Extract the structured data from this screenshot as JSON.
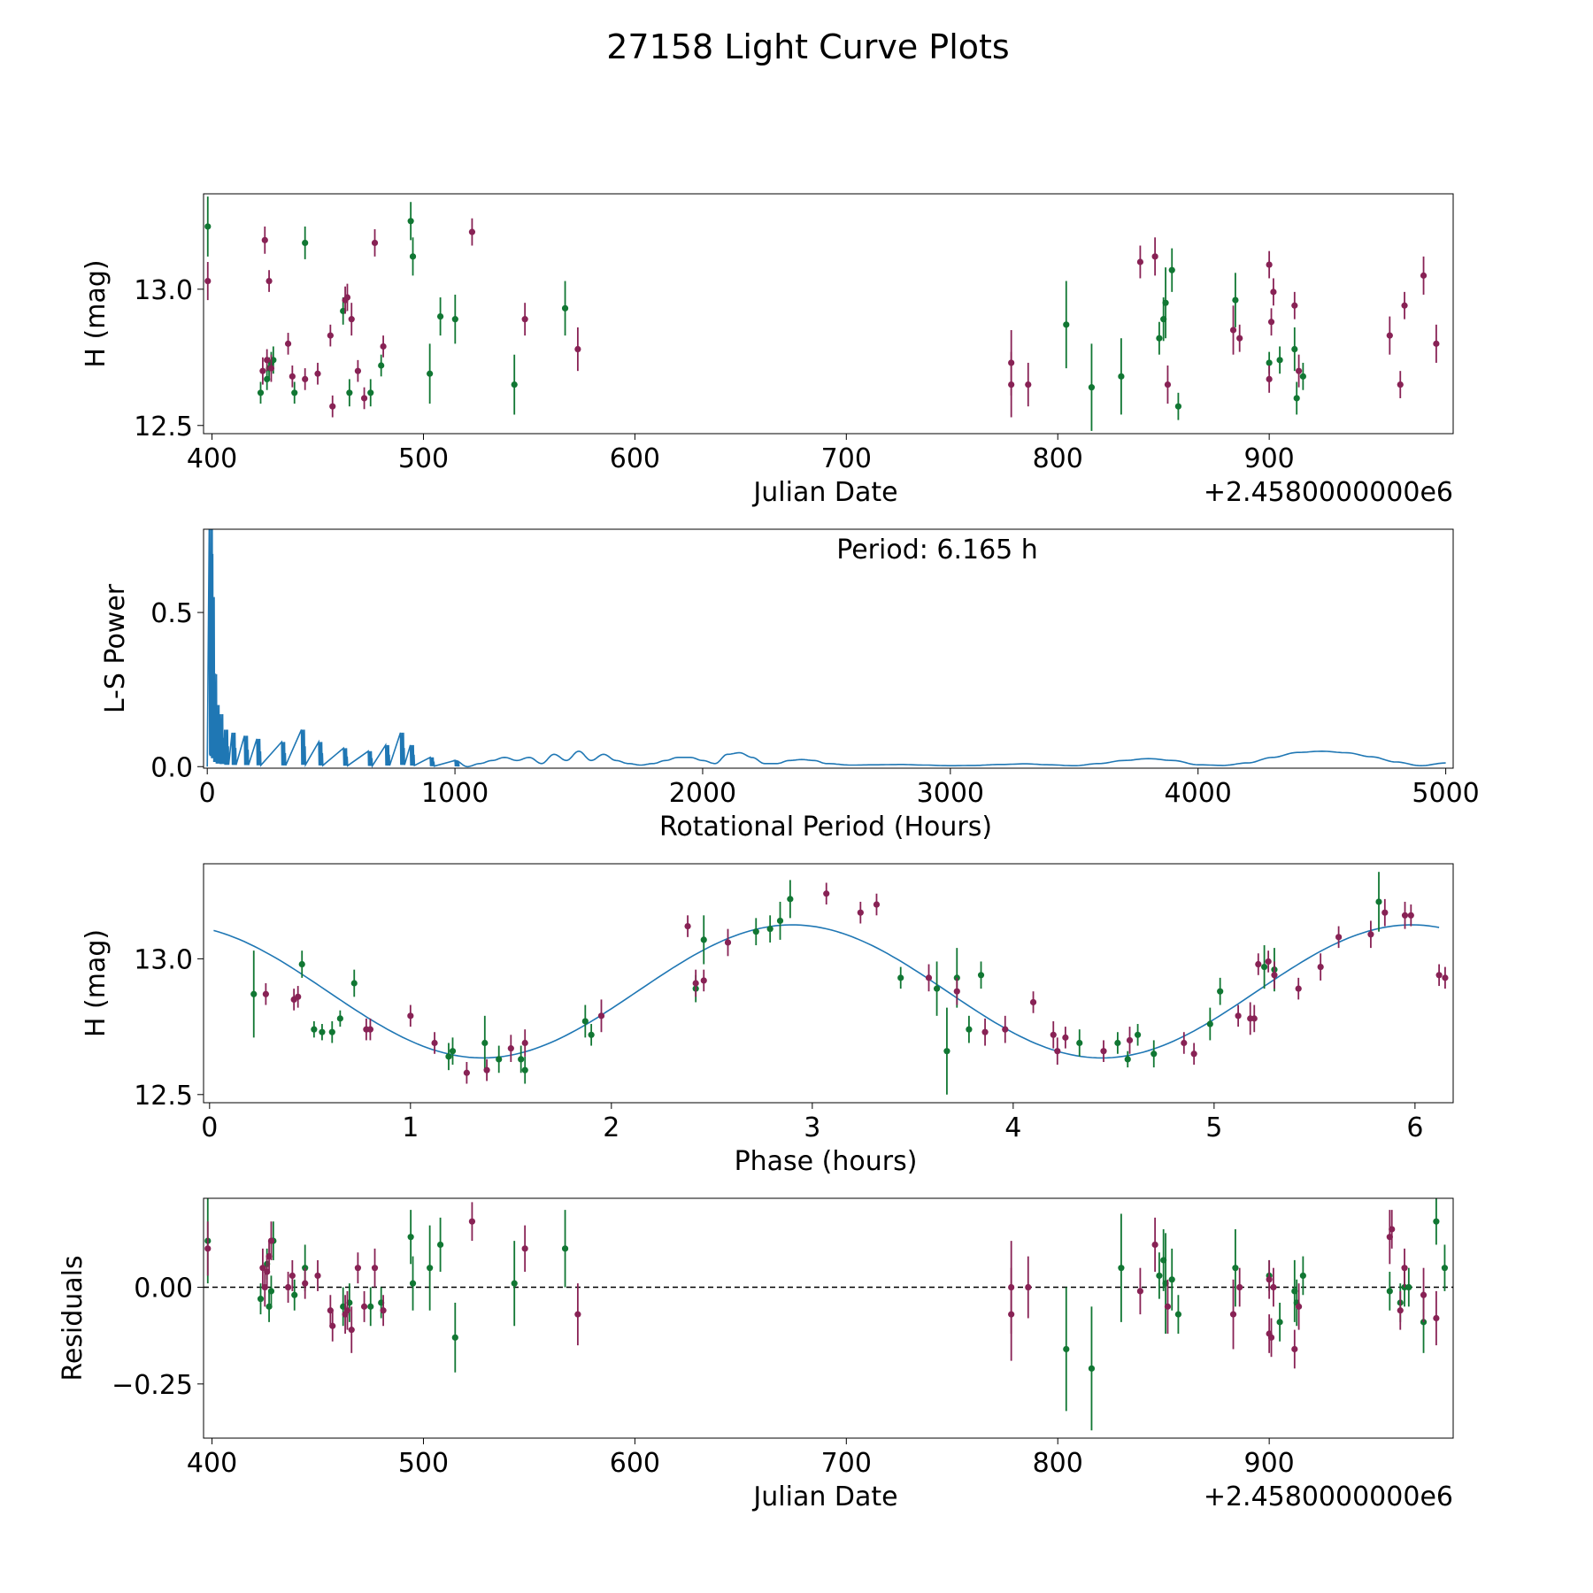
{
  "figure": {
    "title": "27158 Light Curve Plots"
  },
  "colors": {
    "band_g": "#117733",
    "band_r": "#882255",
    "model": "#1f77b4",
    "axes": "#000000"
  },
  "chart_data": [
    {
      "id": "lightcurve",
      "type": "scatter",
      "xlabel": "Julian Date",
      "ylabel": "H (mag)",
      "offset_label": "+2.4580000000e6",
      "xlim": [
        396,
        987
      ],
      "ylim": [
        12.47,
        13.35
      ],
      "xticks": [
        400,
        500,
        600,
        700,
        800,
        900
      ],
      "yticks": [
        12.5,
        13.0
      ],
      "ytick_labels": [
        "12.5",
        "13.0"
      ],
      "series": [
        {
          "name": "g",
          "color": "#117733",
          "x": [
            398,
            423,
            426,
            427,
            428,
            429,
            439,
            444,
            462,
            465,
            475,
            480,
            494,
            495,
            503,
            508,
            515,
            543,
            567,
            804,
            816,
            830,
            848,
            850,
            851,
            854,
            857,
            884,
            900,
            905,
            912,
            913,
            916
          ],
          "y": [
            13.23,
            12.62,
            12.67,
            12.71,
            12.73,
            12.74,
            12.62,
            13.17,
            12.92,
            12.62,
            12.62,
            12.72,
            13.25,
            13.12,
            12.69,
            12.9,
            12.89,
            12.65,
            12.93,
            12.87,
            12.64,
            12.68,
            12.82,
            12.89,
            12.95,
            13.07,
            12.57,
            12.96,
            12.73,
            12.74,
            12.78,
            12.6,
            12.68
          ],
          "err": [
            0.11,
            0.04,
            0.04,
            0.04,
            0.04,
            0.05,
            0.04,
            0.06,
            0.05,
            0.05,
            0.05,
            0.04,
            0.07,
            0.07,
            0.11,
            0.07,
            0.09,
            0.11,
            0.1,
            0.16,
            0.16,
            0.14,
            0.06,
            0.08,
            0.13,
            0.08,
            0.05,
            0.1,
            0.04,
            0.05,
            0.08,
            0.06,
            0.05
          ]
        },
        {
          "name": "r",
          "color": "#882255",
          "x": [
            398,
            424,
            425,
            426,
            427,
            428,
            436,
            438,
            444,
            450,
            456,
            457,
            463,
            464,
            466,
            469,
            472,
            477,
            481,
            523,
            548,
            573,
            778,
            778,
            786,
            839,
            846,
            852,
            883,
            886,
            900,
            900,
            901,
            902,
            912,
            914,
            957,
            962,
            964,
            973,
            979
          ],
          "y": [
            13.03,
            12.7,
            13.18,
            12.74,
            13.03,
            12.71,
            12.8,
            12.68,
            12.67,
            12.69,
            12.83,
            12.57,
            12.96,
            12.97,
            12.89,
            12.7,
            12.6,
            13.17,
            12.79,
            13.21,
            12.89,
            12.78,
            12.73,
            12.65,
            12.65,
            13.1,
            13.12,
            12.65,
            12.85,
            12.82,
            13.09,
            12.67,
            12.88,
            12.99,
            12.94,
            12.7,
            12.83,
            12.65,
            12.94,
            13.05,
            12.8
          ],
          "err": [
            0.07,
            0.05,
            0.05,
            0.04,
            0.04,
            0.05,
            0.04,
            0.04,
            0.04,
            0.04,
            0.04,
            0.04,
            0.05,
            0.05,
            0.06,
            0.04,
            0.04,
            0.05,
            0.04,
            0.05,
            0.06,
            0.08,
            0.12,
            0.12,
            0.08,
            0.06,
            0.07,
            0.07,
            0.09,
            0.05,
            0.05,
            0.05,
            0.05,
            0.05,
            0.05,
            0.06,
            0.07,
            0.05,
            0.05,
            0.07,
            0.07
          ]
        }
      ]
    },
    {
      "id": "periodogram",
      "type": "line",
      "xlabel": "Rotational Period (Hours)",
      "ylabel": "L-S Power",
      "annotation": "Period: 6.165 h",
      "xlim": [
        -15,
        5030
      ],
      "ylim": [
        -0.005,
        0.77
      ],
      "xticks": [
        0,
        1000,
        2000,
        3000,
        4000,
        5000
      ],
      "yticks": [
        0.0,
        0.5
      ],
      "ytick_labels": [
        "0.0",
        "0.5"
      ],
      "series": [
        {
          "name": "power",
          "color": "#1f77b4",
          "peaks": [
            [
              8,
              0.77
            ],
            [
              10,
              0.69
            ],
            [
              16,
              0.55
            ],
            [
              25,
              0.3
            ],
            [
              35,
              0.2
            ],
            [
              50,
              0.17
            ],
            [
              70,
              0.12
            ],
            [
              100,
              0.11
            ],
            [
              150,
              0.1
            ],
            [
              200,
              0.09
            ],
            [
              300,
              0.08
            ],
            [
              380,
              0.12
            ],
            [
              450,
              0.08
            ],
            [
              550,
              0.06
            ],
            [
              650,
              0.05
            ],
            [
              720,
              0.07
            ],
            [
              780,
              0.11
            ],
            [
              820,
              0.07
            ],
            [
              900,
              0.03
            ],
            [
              1000,
              0.02
            ]
          ],
          "x": [
            1000,
            1050,
            1100,
            1150,
            1200,
            1250,
            1300,
            1350,
            1400,
            1450,
            1500,
            1550,
            1600,
            1650,
            1700,
            1750,
            1800,
            1850,
            1900,
            1950,
            2000,
            2050,
            2100,
            2150,
            2200,
            2250,
            2300,
            2350,
            2400,
            2450,
            2500,
            2600,
            2700,
            2800,
            2900,
            3000,
            3100,
            3200,
            3300,
            3400,
            3500,
            3600,
            3700,
            3800,
            3900,
            4000,
            4100,
            4200,
            4300,
            4400,
            4500,
            4600,
            4700,
            4800,
            4900,
            5000
          ],
          "y": [
            0.02,
            0.0,
            0.01,
            0.02,
            0.03,
            0.02,
            0.03,
            0.01,
            0.04,
            0.02,
            0.05,
            0.02,
            0.04,
            0.02,
            0.01,
            0.005,
            0.01,
            0.02,
            0.03,
            0.03,
            0.02,
            0.01,
            0.04,
            0.045,
            0.03,
            0.01,
            0.01,
            0.02,
            0.023,
            0.02,
            0.01,
            0.005,
            0.006,
            0.007,
            0.005,
            0.003,
            0.004,
            0.007,
            0.009,
            0.006,
            0.003,
            0.01,
            0.02,
            0.026,
            0.02,
            0.006,
            0.004,
            0.012,
            0.03,
            0.046,
            0.05,
            0.045,
            0.032,
            0.015,
            0.003,
            0.012
          ]
        }
      ]
    },
    {
      "id": "phased",
      "type": "scatter",
      "xlabel": "Phase (hours)",
      "ylabel": "H (mag)",
      "xlim": [
        -0.03,
        6.19
      ],
      "ylim": [
        12.47,
        13.35
      ],
      "xticks": [
        0,
        1,
        2,
        3,
        4,
        5,
        6
      ],
      "yticks": [
        12.5,
        13.0
      ],
      "ytick_labels": [
        "12.5",
        "13.0"
      ],
      "model": {
        "mean": 12.88,
        "amp": 0.245,
        "period": 3.083,
        "phase_of_max": 2.9
      },
      "series": [
        {
          "name": "g",
          "color": "#117733",
          "x": [
            0.22,
            0.46,
            0.52,
            0.56,
            0.61,
            0.65,
            0.72,
            1.19,
            1.21,
            1.37,
            1.44,
            1.55,
            1.57,
            1.87,
            1.9,
            2.42,
            2.46,
            2.72,
            2.79,
            2.84,
            2.89,
            3.44,
            3.62,
            3.67,
            3.72,
            3.78,
            3.84,
            4.33,
            4.52,
            4.57,
            4.62,
            4.7,
            4.98,
            5.03,
            5.25,
            5.3,
            5.82
          ],
          "y": [
            12.87,
            12.98,
            12.74,
            12.73,
            12.73,
            12.78,
            12.91,
            12.64,
            12.66,
            12.69,
            12.63,
            12.63,
            12.59,
            12.77,
            12.72,
            12.89,
            13.07,
            13.1,
            13.11,
            13.14,
            13.22,
            12.93,
            12.89,
            12.66,
            12.93,
            12.74,
            12.94,
            12.69,
            12.69,
            12.63,
            12.72,
            12.65,
            12.76,
            12.88,
            12.97,
            12.96,
            13.21
          ],
          "err": [
            0.16,
            0.05,
            0.03,
            0.03,
            0.04,
            0.03,
            0.05,
            0.05,
            0.05,
            0.1,
            0.05,
            0.05,
            0.05,
            0.06,
            0.04,
            0.05,
            0.09,
            0.05,
            0.05,
            0.07,
            0.07,
            0.04,
            0.1,
            0.16,
            0.11,
            0.05,
            0.05,
            0.05,
            0.04,
            0.03,
            0.04,
            0.05,
            0.06,
            0.05,
            0.08,
            0.08,
            0.11
          ]
        },
        {
          "name": "r",
          "color": "#882255",
          "x": [
            0.28,
            0.42,
            0.44,
            0.78,
            0.8,
            1.0,
            1.12,
            1.28,
            1.38,
            1.5,
            1.57,
            1.95,
            2.38,
            2.42,
            2.46,
            2.58,
            3.07,
            3.24,
            3.32,
            3.58,
            3.72,
            3.86,
            3.96,
            4.1,
            4.2,
            4.22,
            4.26,
            4.45,
            4.58,
            4.85,
            4.9,
            5.12,
            5.18,
            5.2,
            5.22,
            5.27,
            5.3,
            5.42,
            5.53,
            5.62,
            5.78,
            5.85,
            5.95,
            5.98,
            6.12,
            6.15
          ],
          "y": [
            12.87,
            12.85,
            12.86,
            12.74,
            12.74,
            12.79,
            12.69,
            12.58,
            12.59,
            12.67,
            12.69,
            12.79,
            13.12,
            12.91,
            12.92,
            13.06,
            13.24,
            13.17,
            13.2,
            12.93,
            12.88,
            12.73,
            12.74,
            12.84,
            12.72,
            12.66,
            12.71,
            12.66,
            12.7,
            12.69,
            12.65,
            12.79,
            12.78,
            12.78,
            12.98,
            12.99,
            12.94,
            12.89,
            12.97,
            13.08,
            13.09,
            13.17,
            13.16,
            13.16,
            12.94,
            12.93
          ],
          "err": [
            0.04,
            0.04,
            0.04,
            0.04,
            0.04,
            0.04,
            0.04,
            0.04,
            0.04,
            0.05,
            0.05,
            0.06,
            0.04,
            0.05,
            0.04,
            0.05,
            0.04,
            0.04,
            0.04,
            0.05,
            0.05,
            0.05,
            0.05,
            0.04,
            0.05,
            0.05,
            0.04,
            0.04,
            0.05,
            0.04,
            0.04,
            0.04,
            0.06,
            0.05,
            0.04,
            0.04,
            0.05,
            0.04,
            0.05,
            0.04,
            0.05,
            0.05,
            0.05,
            0.04,
            0.04,
            0.04
          ]
        }
      ]
    },
    {
      "id": "residuals",
      "type": "scatter",
      "xlabel": "Julian Date",
      "ylabel": "Residuals",
      "offset_label": "+2.4580000000e6",
      "xlim": [
        396,
        987
      ],
      "ylim": [
        -0.39,
        0.23
      ],
      "xticks": [
        400,
        500,
        600,
        700,
        800,
        900
      ],
      "yticks": [
        0.0,
        -0.25
      ],
      "ytick_labels": [
        "0.00",
        "−0.25"
      ],
      "zero_line": 0.0,
      "series": [
        {
          "name": "g",
          "color": "#117733",
          "x": [
            398,
            423,
            426,
            427,
            428,
            429,
            439,
            444,
            462,
            465,
            475,
            480,
            494,
            495,
            503,
            508,
            515,
            543,
            567,
            804,
            816,
            830,
            848,
            850,
            851,
            854,
            857,
            884,
            900,
            905,
            912,
            913,
            916,
            957,
            962,
            964,
            966,
            973,
            979,
            983
          ],
          "y": [
            0.12,
            -0.03,
            0.06,
            -0.05,
            -0.01,
            0.12,
            -0.02,
            0.05,
            -0.05,
            -0.04,
            -0.05,
            -0.04,
            0.13,
            0.01,
            0.05,
            0.11,
            -0.13,
            0.01,
            0.1,
            -0.16,
            -0.21,
            0.05,
            0.03,
            0.07,
            0.01,
            0.02,
            -0.07,
            0.05,
            0.03,
            -0.09,
            -0.01,
            -0.04,
            0.03,
            -0.01,
            -0.04,
            0.0,
            0.0,
            -0.09,
            0.17,
            0.05
          ],
          "err": [
            0.11,
            0.04,
            0.04,
            0.04,
            0.04,
            0.05,
            0.04,
            0.06,
            0.05,
            0.05,
            0.05,
            0.04,
            0.07,
            0.07,
            0.11,
            0.07,
            0.09,
            0.11,
            0.1,
            0.16,
            0.16,
            0.14,
            0.06,
            0.08,
            0.13,
            0.08,
            0.05,
            0.1,
            0.04,
            0.05,
            0.08,
            0.06,
            0.05,
            0.05,
            0.05,
            0.05,
            0.05,
            0.08,
            0.06,
            0.06
          ]
        },
        {
          "name": "r",
          "color": "#882255",
          "x": [
            398,
            424,
            425,
            426,
            427,
            428,
            436,
            438,
            444,
            450,
            456,
            457,
            463,
            464,
            466,
            469,
            472,
            477,
            481,
            523,
            548,
            573,
            778,
            778,
            786,
            839,
            846,
            852,
            883,
            886,
            900,
            900,
            901,
            902,
            912,
            914,
            957,
            958,
            962,
            964,
            973,
            979
          ],
          "y": [
            0.1,
            0.05,
            0.0,
            0.04,
            0.08,
            0.12,
            0.0,
            0.03,
            0.01,
            0.03,
            -0.06,
            -0.1,
            -0.07,
            -0.06,
            -0.11,
            0.05,
            -0.05,
            0.05,
            -0.06,
            0.17,
            0.1,
            -0.07,
            0.0,
            -0.07,
            0.0,
            -0.01,
            0.11,
            -0.05,
            -0.07,
            0.0,
            0.02,
            -0.12,
            -0.13,
            0.0,
            -0.16,
            -0.05,
            0.13,
            0.15,
            -0.06,
            0.05,
            -0.02,
            -0.08
          ],
          "err": [
            0.07,
            0.05,
            0.05,
            0.04,
            0.04,
            0.05,
            0.04,
            0.04,
            0.04,
            0.04,
            0.04,
            0.04,
            0.05,
            0.05,
            0.06,
            0.04,
            0.04,
            0.05,
            0.04,
            0.05,
            0.06,
            0.08,
            0.12,
            0.12,
            0.08,
            0.06,
            0.07,
            0.07,
            0.09,
            0.05,
            0.05,
            0.05,
            0.05,
            0.05,
            0.05,
            0.06,
            0.07,
            0.05,
            0.05,
            0.05,
            0.07,
            0.07
          ]
        }
      ]
    }
  ]
}
